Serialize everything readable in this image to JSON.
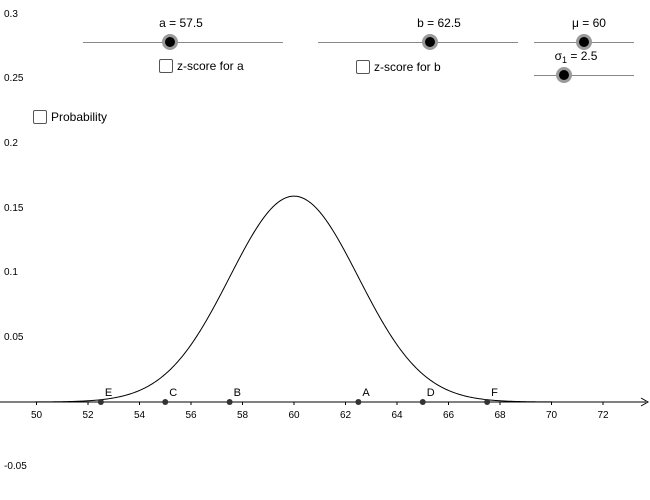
{
  "sliders": {
    "a": {
      "label": "a = 57.5",
      "value": 57.5
    },
    "b": {
      "label": "b = 62.5",
      "value": 62.5
    },
    "mu": {
      "label": "μ = 60",
      "value": 60
    },
    "sigma": {
      "label_prefix": "σ",
      "label_sub": "1",
      "label_suffix": " = 2.5",
      "value": 2.5
    }
  },
  "checkboxes": {
    "z_a": {
      "label": "z-score for a",
      "checked": false
    },
    "z_b": {
      "label": "z-score for b",
      "checked": false
    },
    "probability": {
      "label": "Probability",
      "checked": false
    }
  },
  "chart_data": {
    "type": "line",
    "title": "",
    "xlabel": "",
    "ylabel": "",
    "xlim": [
      48.6,
      73.4
    ],
    "ylim": [
      -0.05,
      0.3
    ],
    "x_ticks": [
      "50",
      "52",
      "54",
      "56",
      "58",
      "60",
      "62",
      "64",
      "66",
      "68",
      "70",
      "72"
    ],
    "y_ticks": [
      "0.3",
      "0.25",
      "0.2",
      "0.15",
      "0.1",
      "0.05",
      "-0.05"
    ],
    "curve": {
      "kind": "normal-density",
      "mu": 60,
      "sigma": 2.5
    },
    "points": [
      {
        "name": "E",
        "x": 52.5,
        "y": 0
      },
      {
        "name": "C",
        "x": 55,
        "y": 0
      },
      {
        "name": "B",
        "x": 57.5,
        "y": 0
      },
      {
        "name": "A",
        "x": 62.5,
        "y": 0
      },
      {
        "name": "D",
        "x": 65,
        "y": 0
      },
      {
        "name": "F",
        "x": 67.5,
        "y": 0
      }
    ],
    "grid": false,
    "colors": {
      "curve": "#000000",
      "axis": "#000000",
      "point": "#333333",
      "knob": "#000000",
      "knob_ring": "#9a9a9a"
    }
  }
}
